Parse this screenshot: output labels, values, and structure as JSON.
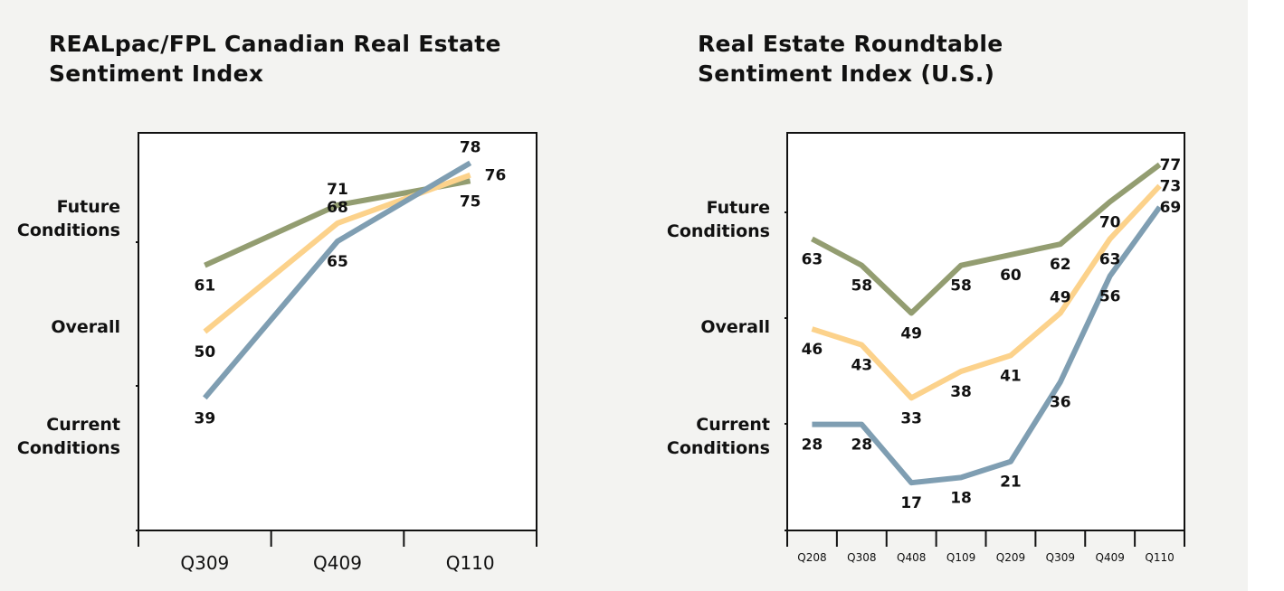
{
  "chart_data": [
    {
      "type": "line",
      "title": [
        "REALpac/FPL Canadian Real Estate",
        "Sentiment Index"
      ],
      "categories": [
        "Q309",
        "Q409",
        "Q110"
      ],
      "ylim": [
        17,
        83
      ],
      "row_labels": [
        [
          "Future",
          "Conditions"
        ],
        [
          "Overall"
        ],
        [
          "Current",
          "Conditions"
        ]
      ],
      "series": [
        {
          "values": [
            61,
            71,
            75
          ],
          "color": "#939d71",
          "label_side": [
            "below",
            "above",
            "below"
          ]
        },
        {
          "values": [
            50,
            68,
            76
          ],
          "color": "#fcd28b",
          "label_side": [
            "below",
            "above",
            "right"
          ]
        },
        {
          "values": [
            39,
            65,
            78
          ],
          "color": "#7f9eb2",
          "label_side": [
            "below",
            "below",
            "above"
          ]
        }
      ],
      "grid": false
    },
    {
      "type": "line",
      "title": [
        "Real Estate Roundtable",
        "Sentiment Index (U.S.)"
      ],
      "categories": [
        "Q208",
        "Q308",
        "Q408",
        "Q109",
        "Q209",
        "Q309",
        "Q409",
        "Q110"
      ],
      "ylim": [
        8,
        83
      ],
      "row_labels": [
        [
          "Future",
          "Conditions"
        ],
        [
          "Overall"
        ],
        [
          "Current",
          "Conditions"
        ]
      ],
      "series": [
        {
          "values": [
            63,
            58,
            49,
            58,
            60,
            62,
            70,
            77
          ],
          "color": "#939d71",
          "label_side": [
            "below",
            "below",
            "below",
            "below",
            "below",
            "below",
            "below",
            "right"
          ]
        },
        {
          "values": [
            46,
            43,
            33,
            38,
            41,
            49,
            63,
            73
          ],
          "color": "#fcd28b",
          "label_side": [
            "below",
            "below",
            "below",
            "below",
            "below",
            "above",
            "below",
            "right"
          ]
        },
        {
          "values": [
            28,
            28,
            17,
            18,
            21,
            36,
            56,
            69
          ],
          "color": "#7f9eb2",
          "label_side": [
            "below",
            "below",
            "below",
            "below",
            "below",
            "below",
            "below",
            "right"
          ]
        }
      ],
      "grid": false
    }
  ]
}
